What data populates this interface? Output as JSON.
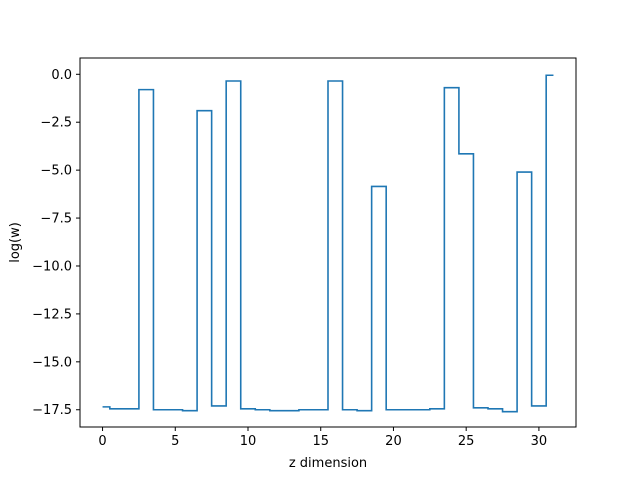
{
  "chart_data": {
    "type": "line",
    "drawstyle": "steps-mid",
    "title": "",
    "xlabel": "z dimension",
    "ylabel": "log(w)",
    "xlim": [
      -1.55,
      32.55
    ],
    "ylim": [
      -18.4,
      0.85
    ],
    "xticks": [
      0,
      5,
      10,
      15,
      20,
      25,
      30
    ],
    "xtick_labels": [
      "0",
      "5",
      "10",
      "15",
      "20",
      "25",
      "30"
    ],
    "yticks": [
      0.0,
      -2.5,
      -5.0,
      -7.5,
      -10.0,
      -12.5,
      -15.0,
      -17.5
    ],
    "ytick_labels": [
      "0.0",
      "−2.5",
      "−5.0",
      "−7.5",
      "−10.0",
      "−12.5",
      "−15.0",
      "−17.5"
    ],
    "grid": false,
    "legend": false,
    "line_color": "#1f77b4",
    "series": [
      {
        "x": [
          0,
          1,
          2,
          3,
          4,
          5,
          6,
          7,
          8,
          9,
          10,
          11,
          12,
          13,
          14,
          15,
          16,
          17,
          18,
          19,
          20,
          21,
          22,
          23,
          24,
          25,
          26,
          27,
          28,
          29,
          30,
          31
        ],
        "y": [
          -17.35,
          -17.45,
          -17.45,
          -0.8,
          -17.5,
          -17.5,
          -17.55,
          -1.9,
          -17.3,
          -0.35,
          -17.45,
          -17.5,
          -17.55,
          -17.55,
          -17.5,
          -17.5,
          -0.35,
          -17.5,
          -17.55,
          -5.85,
          -17.5,
          -17.5,
          -17.5,
          -17.45,
          -0.7,
          -4.15,
          -17.4,
          -17.45,
          -17.6,
          -5.1,
          -17.3,
          -0.05
        ]
      }
    ]
  }
}
